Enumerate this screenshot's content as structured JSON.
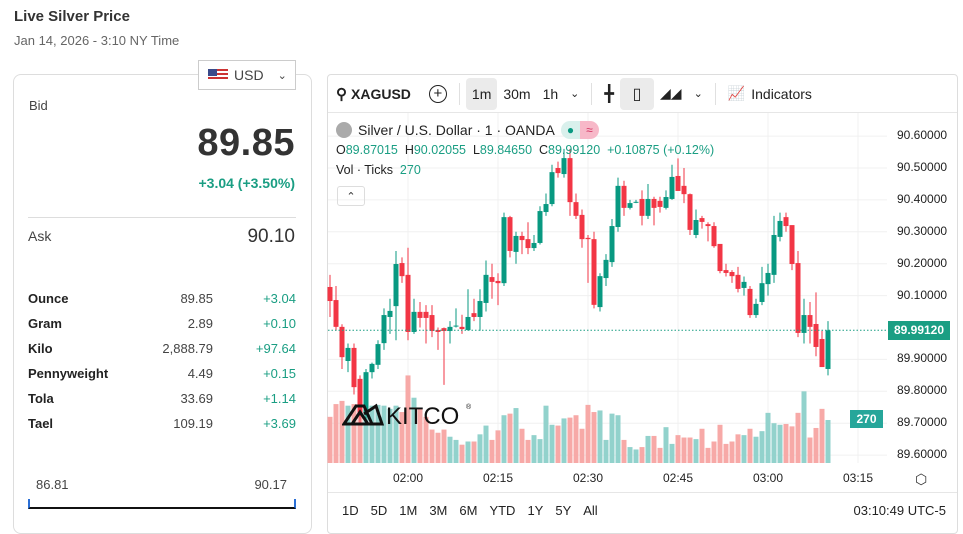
{
  "header": {
    "title": "Live Silver Price",
    "date": "Jan 14, 2026 - 3:10 NY Time"
  },
  "currency": {
    "selected": "USD",
    "icon": "us-flag-icon"
  },
  "quote": {
    "bid_label": "Bid",
    "bid": "89.85",
    "change": "+3.04 (+3.50%)",
    "ask_label": "Ask",
    "ask": "90.10"
  },
  "units": [
    {
      "name": "Ounce",
      "value": "89.85",
      "change": "+3.04"
    },
    {
      "name": "Gram",
      "value": "2.89",
      "change": "+0.10"
    },
    {
      "name": "Kilo",
      "value": "2,888.79",
      "change": "+97.64"
    },
    {
      "name": "Pennyweight",
      "value": "4.49",
      "change": "+0.15"
    },
    {
      "name": "Tola",
      "value": "33.69",
      "change": "+1.14"
    },
    {
      "name": "Tael",
      "value": "109.19",
      "change": "+3.69"
    }
  ],
  "range": {
    "low": "86.81",
    "high": "90.17"
  },
  "toolbar": {
    "symbol": "XAGUSD",
    "intervals": [
      "1m",
      "30m",
      "1h"
    ],
    "active_interval": "1m",
    "indicators": "Indicators"
  },
  "legend": {
    "title": "Silver / U.S. Dollar · 1 · OANDA",
    "o_label": "O",
    "o": "89.87015",
    "h_label": "H",
    "h": "90.02055",
    "l_label": "L",
    "l": "89.84650",
    "c_label": "C",
    "c": "89.99120",
    "chg": "+0.10875 (+0.12%)",
    "vol_label": "Vol · Ticks",
    "vol": "270"
  },
  "colors": {
    "up": "#089981",
    "down": "#f23645",
    "vol_up": "#92d2cc",
    "vol_down": "#f7a9a7",
    "accent": "#1a9e83"
  },
  "ranges": [
    "1D",
    "5D",
    "1M",
    "3M",
    "6M",
    "YTD",
    "1Y",
    "5Y",
    "All"
  ],
  "clock": "03:10:49 UTC-5",
  "logo": "KITCO",
  "chart_data": {
    "type": "candlestick",
    "price_ticks": [
      "90.60000",
      "90.50000",
      "90.40000",
      "90.30000",
      "90.20000",
      "90.10000",
      "89.90000",
      "89.80000",
      "89.70000",
      "89.60000"
    ],
    "time_ticks": [
      "02:00",
      "02:15",
      "02:30",
      "02:45",
      "03:00",
      "03:15"
    ],
    "current_price": "89.99120",
    "current_volume": "270",
    "start_time": "01:47",
    "interval": "1m",
    "ohlc": [
      [
        90.127,
        90.165,
        90.033,
        90.083
      ],
      [
        90.086,
        90.13,
        89.99,
        90.002
      ],
      [
        90.002,
        90.01,
        89.87,
        89.907
      ],
      [
        89.895,
        89.95,
        89.86,
        89.936
      ],
      [
        89.936,
        89.95,
        89.79,
        89.813
      ],
      [
        89.839,
        89.85,
        89.7,
        89.732
      ],
      [
        89.732,
        89.87,
        89.7,
        89.86
      ],
      [
        89.86,
        89.89,
        89.84,
        89.886
      ],
      [
        89.883,
        89.96,
        89.87,
        89.948
      ],
      [
        89.951,
        90.06,
        89.93,
        90.039
      ],
      [
        90.033,
        90.09,
        89.98,
        90.052
      ],
      [
        90.067,
        90.24,
        89.96,
        90.199
      ],
      [
        90.202,
        90.22,
        90.14,
        90.161
      ],
      [
        90.165,
        90.25,
        89.96,
        89.986
      ],
      [
        89.986,
        90.09,
        89.98,
        90.049
      ],
      [
        90.049,
        90.08,
        90.0,
        90.03
      ],
      [
        90.049,
        90.07,
        89.95,
        90.03
      ],
      [
        90.039,
        90.07,
        89.97,
        89.989
      ],
      [
        89.992,
        90.0,
        89.93,
        89.986
      ],
      [
        89.998,
        90.0,
        89.82,
        89.989
      ],
      [
        89.989,
        90.02,
        89.95,
        90.002
      ],
      [
        90.005,
        90.06,
        90.0,
        90.006
      ],
      [
        90.002,
        90.04,
        89.98,
        89.995
      ],
      [
        89.992,
        90.12,
        89.99,
        90.033
      ],
      [
        90.045,
        90.09,
        90.02,
        90.033
      ],
      [
        90.033,
        90.12,
        89.99,
        90.083
      ],
      [
        90.077,
        90.21,
        90.05,
        90.165
      ],
      [
        90.158,
        90.2,
        90.09,
        90.143
      ],
      [
        90.146,
        90.17,
        90.07,
        90.139
      ],
      [
        90.139,
        90.36,
        90.13,
        90.346
      ],
      [
        90.346,
        90.35,
        90.22,
        90.24
      ],
      [
        90.237,
        90.3,
        90.2,
        90.287
      ],
      [
        90.287,
        90.3,
        90.23,
        90.274
      ],
      [
        90.277,
        90.33,
        90.23,
        90.249
      ],
      [
        90.249,
        90.29,
        90.24,
        90.265
      ],
      [
        90.265,
        90.38,
        90.26,
        90.365
      ],
      [
        90.362,
        90.42,
        90.35,
        90.387
      ],
      [
        90.387,
        90.51,
        90.38,
        90.487
      ],
      [
        90.5,
        90.52,
        90.47,
        90.484
      ],
      [
        90.481,
        90.56,
        90.47,
        90.531
      ],
      [
        90.531,
        90.56,
        90.35,
        90.393
      ],
      [
        90.393,
        90.42,
        90.34,
        90.35
      ],
      [
        90.353,
        90.37,
        90.25,
        90.277
      ],
      [
        90.281,
        90.29,
        90.14,
        90.277
      ],
      [
        90.277,
        90.3,
        90.06,
        90.071
      ],
      [
        90.064,
        90.17,
        90.05,
        90.161
      ],
      [
        90.155,
        90.23,
        90.13,
        90.212
      ],
      [
        90.205,
        90.34,
        90.19,
        90.318
      ],
      [
        90.315,
        90.47,
        90.3,
        90.444
      ],
      [
        90.444,
        90.46,
        90.35,
        90.375
      ],
      [
        90.375,
        90.4,
        90.37,
        90.39
      ],
      [
        90.393,
        90.4,
        90.39,
        90.394
      ],
      [
        90.403,
        90.43,
        90.32,
        90.35
      ],
      [
        90.35,
        90.45,
        90.34,
        90.403
      ],
      [
        90.403,
        90.41,
        90.32,
        90.375
      ],
      [
        90.397,
        90.41,
        90.36,
        90.378
      ],
      [
        90.375,
        90.43,
        90.37,
        90.409
      ],
      [
        90.403,
        90.51,
        90.4,
        90.472
      ],
      [
        90.475,
        90.53,
        90.43,
        90.428
      ],
      [
        90.444,
        90.5,
        90.39,
        90.418
      ],
      [
        90.418,
        90.42,
        90.29,
        90.306
      ],
      [
        90.29,
        90.37,
        90.28,
        90.337
      ],
      [
        90.343,
        90.35,
        90.31,
        90.331
      ],
      [
        90.324,
        90.33,
        90.27,
        90.318
      ],
      [
        90.318,
        90.33,
        90.25,
        90.255
      ],
      [
        90.262,
        90.26,
        90.17,
        90.177
      ],
      [
        90.18,
        90.2,
        90.16,
        90.171
      ],
      [
        90.174,
        90.18,
        90.14,
        90.161
      ],
      [
        90.165,
        90.19,
        90.11,
        90.121
      ],
      [
        90.124,
        90.16,
        90.1,
        90.143
      ],
      [
        90.121,
        90.13,
        90.03,
        90.039
      ],
      [
        90.039,
        90.09,
        90.03,
        90.074
      ],
      [
        90.08,
        90.19,
        90.07,
        90.139
      ],
      [
        90.136,
        90.2,
        90.1,
        90.171
      ],
      [
        90.165,
        90.35,
        90.14,
        90.29
      ],
      [
        90.284,
        90.36,
        90.27,
        90.334
      ],
      [
        90.346,
        90.36,
        90.3,
        90.318
      ],
      [
        90.321,
        90.32,
        90.18,
        90.199
      ],
      [
        90.202,
        90.24,
        89.97,
        89.983
      ],
      [
        89.983,
        90.09,
        89.95,
        90.039
      ],
      [
        90.039,
        90.08,
        89.95,
        90.002
      ],
      [
        90.011,
        90.11,
        89.91,
        89.939
      ],
      [
        89.964,
        89.99,
        89.88,
        89.876
      ],
      [
        89.87,
        90.02,
        89.85,
        89.991
      ]
    ],
    "volume": [
      290,
      370,
      390,
      360,
      370,
      320,
      360,
      360,
      365,
      360,
      340,
      360,
      320,
      550,
      410,
      340,
      290,
      210,
      190,
      210,
      165,
      145,
      115,
      135,
      135,
      180,
      235,
      145,
      205,
      300,
      310,
      345,
      215,
      145,
      175,
      150,
      360,
      240,
      235,
      280,
      285,
      300,
      215,
      365,
      320,
      330,
      145,
      310,
      300,
      145,
      100,
      85,
      100,
      170,
      170,
      95,
      225,
      120,
      175,
      160,
      160,
      150,
      215,
      95,
      135,
      240,
      120,
      135,
      180,
      175,
      215,
      165,
      200,
      315,
      250,
      240,
      245,
      230,
      315,
      450,
      160,
      220,
      340,
      270
    ]
  }
}
